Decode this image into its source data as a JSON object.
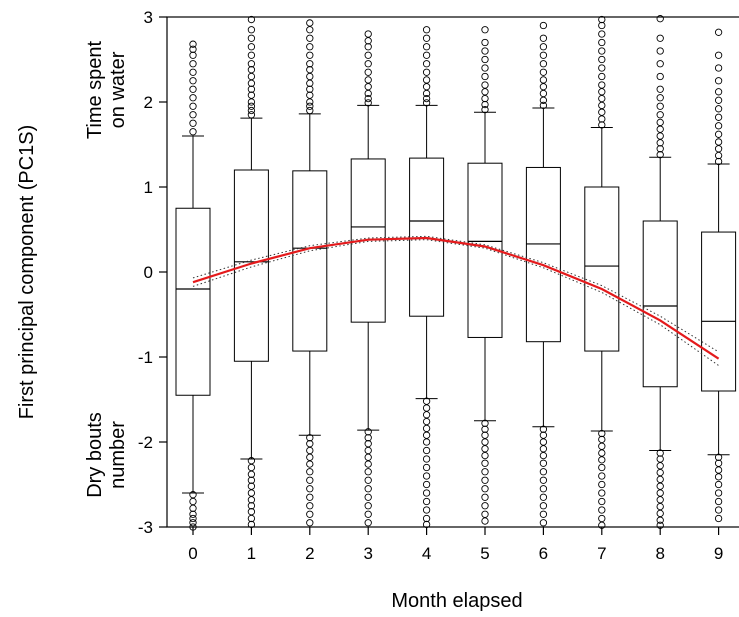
{
  "chart_data": {
    "type": "box",
    "title": "",
    "xlabel": "Month elapsed",
    "ylabel": "First principal component (PC1S)",
    "ylabel_top_note": "Time spent on water",
    "ylabel_bottom_note": "Dry bouts number",
    "xlim": [
      -0.5,
      9.5
    ],
    "ylim": [
      -3,
      3
    ],
    "x_ticks": [
      0,
      1,
      2,
      3,
      4,
      5,
      6,
      7,
      8,
      9
    ],
    "y_ticks": [
      -3,
      -2,
      -1,
      0,
      1,
      2,
      3
    ],
    "grid": false,
    "categories": [
      0,
      1,
      2,
      3,
      4,
      5,
      6,
      7,
      8,
      9
    ],
    "boxes": [
      {
        "x": 0,
        "whisker_low": -2.6,
        "q1": -1.45,
        "median": -0.2,
        "q3": 0.75,
        "whisker_high": 1.6
      },
      {
        "x": 1,
        "whisker_low": -2.2,
        "q1": -1.05,
        "median": 0.12,
        "q3": 1.2,
        "whisker_high": 1.81
      },
      {
        "x": 2,
        "whisker_low": -1.92,
        "q1": -0.93,
        "median": 0.28,
        "q3": 1.19,
        "whisker_high": 1.86
      },
      {
        "x": 3,
        "whisker_low": -1.86,
        "q1": -0.59,
        "median": 0.53,
        "q3": 1.33,
        "whisker_high": 1.96
      },
      {
        "x": 4,
        "whisker_low": -1.49,
        "q1": -0.52,
        "median": 0.6,
        "q3": 1.34,
        "whisker_high": 1.96
      },
      {
        "x": 5,
        "whisker_low": -1.75,
        "q1": -0.77,
        "median": 0.36,
        "q3": 1.28,
        "whisker_high": 1.88
      },
      {
        "x": 6,
        "whisker_low": -1.82,
        "q1": -0.82,
        "median": 0.33,
        "q3": 1.23,
        "whisker_high": 1.93
      },
      {
        "x": 7,
        "whisker_low": -1.87,
        "q1": -0.93,
        "median": 0.07,
        "q3": 1.0,
        "whisker_high": 1.7
      },
      {
        "x": 8,
        "whisker_low": -2.1,
        "q1": -1.35,
        "median": -0.4,
        "q3": 0.6,
        "whisker_high": 1.35
      },
      {
        "x": 9,
        "whisker_low": -2.15,
        "q1": -1.4,
        "median": -0.58,
        "q3": 0.47,
        "whisker_high": 1.27
      }
    ],
    "outliers": [
      {
        "x": 0,
        "above": [
          1.65,
          1.75,
          1.85,
          1.95,
          2.05,
          2.15,
          2.25,
          2.35,
          2.45,
          2.55,
          2.62,
          2.68
        ],
        "below": [
          -2.62,
          -2.7,
          -2.78,
          -2.85,
          -2.9,
          -2.95,
          -3.0
        ]
      },
      {
        "x": 1,
        "above": [
          1.85,
          1.9,
          1.95,
          2.0,
          2.08,
          2.15,
          2.22,
          2.3,
          2.38,
          2.45,
          2.55,
          2.65,
          2.75,
          2.85,
          2.97
        ],
        "below": [
          -2.22,
          -2.3,
          -2.38,
          -2.45,
          -2.52,
          -2.6,
          -2.68,
          -2.75,
          -2.82,
          -2.9,
          -2.97
        ]
      },
      {
        "x": 2,
        "above": [
          1.9,
          1.95,
          2.0,
          2.08,
          2.15,
          2.22,
          2.3,
          2.38,
          2.45,
          2.55,
          2.65,
          2.75,
          2.85,
          2.93
        ],
        "below": [
          -1.95,
          -2.02,
          -2.1,
          -2.18,
          -2.26,
          -2.35,
          -2.45,
          -2.55,
          -2.65,
          -2.75,
          -2.85,
          -2.95
        ]
      },
      {
        "x": 3,
        "above": [
          1.99,
          2.04,
          2.1,
          2.18,
          2.26,
          2.35,
          2.45,
          2.55,
          2.65,
          2.72,
          2.8
        ],
        "below": [
          -1.88,
          -1.95,
          -2.02,
          -2.1,
          -2.18,
          -2.26,
          -2.35,
          -2.45,
          -2.55,
          -2.65,
          -2.75,
          -2.85,
          -2.95
        ]
      },
      {
        "x": 4,
        "above": [
          1.99,
          2.04,
          2.1,
          2.18,
          2.26,
          2.35,
          2.45,
          2.55,
          2.65,
          2.75,
          2.85
        ],
        "below": [
          -1.52,
          -1.6,
          -1.68,
          -1.76,
          -1.84,
          -1.92,
          -2.0,
          -2.1,
          -2.2,
          -2.3,
          -2.4,
          -2.5,
          -2.6,
          -2.7,
          -2.8,
          -2.9,
          -2.97
        ]
      },
      {
        "x": 5,
        "above": [
          1.91,
          1.97,
          2.04,
          2.12,
          2.2,
          2.3,
          2.4,
          2.5,
          2.6,
          2.7,
          2.85
        ],
        "below": [
          -1.78,
          -1.85,
          -1.92,
          -2.0,
          -2.08,
          -2.16,
          -2.25,
          -2.35,
          -2.45,
          -2.55,
          -2.65,
          -2.75,
          -2.85,
          -2.93
        ]
      },
      {
        "x": 6,
        "above": [
          1.96,
          2.02,
          2.1,
          2.18,
          2.26,
          2.35,
          2.45,
          2.55,
          2.65,
          2.75,
          2.9
        ],
        "below": [
          -1.85,
          -1.92,
          -2.0,
          -2.08,
          -2.16,
          -2.25,
          -2.35,
          -2.45,
          -2.55,
          -2.65,
          -2.75,
          -2.85,
          -2.95
        ]
      },
      {
        "x": 7,
        "above": [
          1.73,
          1.8,
          1.88,
          1.96,
          2.04,
          2.12,
          2.2,
          2.3,
          2.4,
          2.5,
          2.6,
          2.7,
          2.8,
          2.9,
          2.97
        ],
        "below": [
          -1.9,
          -1.97,
          -2.05,
          -2.13,
          -2.21,
          -2.3,
          -2.4,
          -2.5,
          -2.6,
          -2.7,
          -2.8,
          -2.9,
          -2.98
        ]
      },
      {
        "x": 8,
        "above": [
          1.38,
          1.45,
          1.52,
          1.6,
          1.68,
          1.76,
          1.85,
          1.95,
          2.05,
          2.15,
          2.3,
          2.45,
          2.6,
          2.75,
          2.98
        ],
        "below": [
          -2.13,
          -2.2,
          -2.28,
          -2.36,
          -2.44,
          -2.52,
          -2.6,
          -2.68,
          -2.76,
          -2.84,
          -2.92,
          -2.98
        ]
      },
      {
        "x": 9,
        "above": [
          1.3,
          1.37,
          1.45,
          1.53,
          1.62,
          1.72,
          1.82,
          1.92,
          2.02,
          2.12,
          2.25,
          2.4,
          2.55,
          2.82
        ],
        "below": [
          -2.18,
          -2.25,
          -2.33,
          -2.41,
          -2.5,
          -2.6,
          -2.7,
          -2.8,
          -2.9
        ]
      }
    ],
    "trend_line": {
      "color": "#e41a1c",
      "x": [
        0,
        1,
        2,
        3,
        4,
        5,
        6,
        7,
        8,
        9
      ],
      "y": [
        -0.12,
        0.1,
        0.28,
        0.38,
        0.4,
        0.3,
        0.08,
        -0.2,
        -0.57,
        -1.02
      ],
      "ci_low": [
        -0.17,
        0.06,
        0.25,
        0.36,
        0.38,
        0.28,
        0.05,
        -0.24,
        -0.62,
        -1.1
      ],
      "ci_high": [
        -0.07,
        0.14,
        0.31,
        0.4,
        0.42,
        0.32,
        0.11,
        -0.16,
        -0.52,
        -0.94
      ]
    }
  }
}
